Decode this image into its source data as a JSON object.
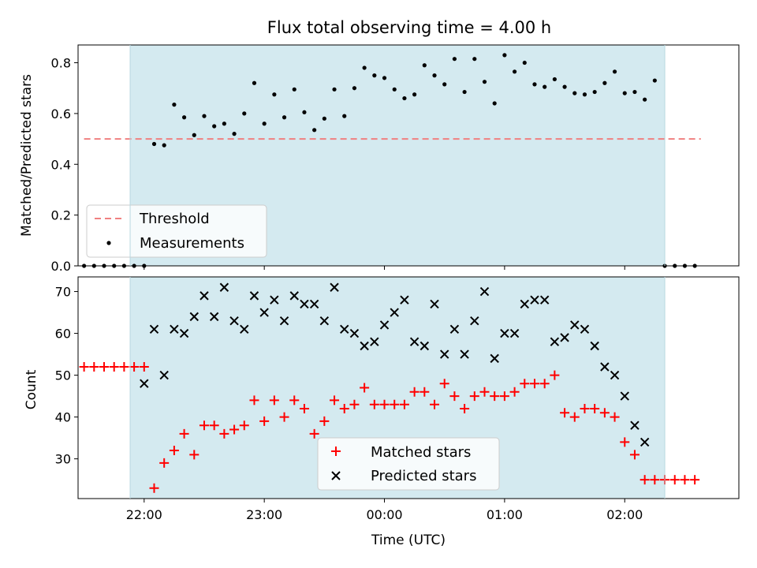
{
  "chart_data": [
    {
      "type": "scatter",
      "title": "Flux total observing time = 4.00 h",
      "ylabel": "Matched/Predicted stars",
      "ylim": [
        0,
        0.87
      ],
      "yticks": [
        "0.0",
        "0.2",
        "0.4",
        "0.6",
        "0.8"
      ],
      "xlim": [
        "21:27",
        "02:57"
      ],
      "x_ticks_shown": false,
      "observing_window": {
        "start": "21:53",
        "end": "02:20",
        "color": "#d4eaf0"
      },
      "threshold": {
        "name": "Threshold",
        "value": 0.5,
        "x_start": "21:30",
        "x_end": "02:38",
        "color": "#f08080",
        "style": "dashed"
      },
      "legend": {
        "position": "lower-left",
        "entries": [
          "Threshold",
          "Measurements"
        ]
      },
      "series": [
        {
          "name": "Measurements",
          "marker": "dot",
          "color": "#000000",
          "points": [
            [
              "21:30",
              0.0
            ],
            [
              "21:35",
              0.0
            ],
            [
              "21:40",
              0.0
            ],
            [
              "21:45",
              0.0
            ],
            [
              "21:50",
              0.0
            ],
            [
              "21:55",
              0.0
            ],
            [
              "22:00",
              0.0
            ],
            [
              "22:05",
              0.48
            ],
            [
              "22:10",
              0.475
            ],
            [
              "22:15",
              0.635
            ],
            [
              "22:20",
              0.585
            ],
            [
              "22:25",
              0.515
            ],
            [
              "22:30",
              0.59
            ],
            [
              "22:35",
              0.55
            ],
            [
              "22:40",
              0.56
            ],
            [
              "22:45",
              0.52
            ],
            [
              "22:50",
              0.6
            ],
            [
              "22:55",
              0.72
            ],
            [
              "23:00",
              0.56
            ],
            [
              "23:05",
              0.675
            ],
            [
              "23:10",
              0.585
            ],
            [
              "23:15",
              0.695
            ],
            [
              "23:20",
              0.605
            ],
            [
              "23:25",
              0.535
            ],
            [
              "23:30",
              0.58
            ],
            [
              "23:35",
              0.695
            ],
            [
              "23:40",
              0.59
            ],
            [
              "23:45",
              0.7
            ],
            [
              "23:50",
              0.78
            ],
            [
              "23:55",
              0.75
            ],
            [
              "00:00",
              0.74
            ],
            [
              "00:05",
              0.695
            ],
            [
              "00:10",
              0.66
            ],
            [
              "00:15",
              0.675
            ],
            [
              "00:20",
              0.79
            ],
            [
              "00:25",
              0.75
            ],
            [
              "00:30",
              0.715
            ],
            [
              "00:35",
              0.815
            ],
            [
              "00:40",
              0.685
            ],
            [
              "00:45",
              0.815
            ],
            [
              "00:50",
              0.725
            ],
            [
              "00:55",
              0.64
            ],
            [
              "01:00",
              0.83
            ],
            [
              "01:05",
              0.765
            ],
            [
              "01:10",
              0.8
            ],
            [
              "01:15",
              0.715
            ],
            [
              "01:20",
              0.705
            ],
            [
              "01:25",
              0.735
            ],
            [
              "01:30",
              0.705
            ],
            [
              "01:35",
              0.68
            ],
            [
              "01:40",
              0.675
            ],
            [
              "01:45",
              0.685
            ],
            [
              "01:50",
              0.72
            ],
            [
              "01:55",
              0.765
            ],
            [
              "02:00",
              0.68
            ],
            [
              "02:05",
              0.685
            ],
            [
              "02:10",
              0.655
            ],
            [
              "02:15",
              0.73
            ],
            [
              "02:20",
              0.0
            ],
            [
              "02:25",
              0.0
            ],
            [
              "02:30",
              0.0
            ],
            [
              "02:35",
              0.0
            ]
          ]
        }
      ]
    },
    {
      "type": "scatter",
      "ylabel": "Count",
      "xlabel": "Time (UTC)",
      "ylim": [
        20.5,
        73.5
      ],
      "yticks": [
        "30",
        "40",
        "50",
        "60",
        "70"
      ],
      "xlim": [
        "21:27",
        "02:57"
      ],
      "xticks": [
        "22:00",
        "23:00",
        "00:00",
        "01:00",
        "02:00"
      ],
      "observing_window": {
        "start": "21:53",
        "end": "02:20",
        "color": "#d4eaf0"
      },
      "legend": {
        "position": "lower-center",
        "entries": [
          "Matched stars",
          "Predicted stars"
        ]
      },
      "series": [
        {
          "name": "Matched stars",
          "marker": "plus",
          "color": "#ff0000",
          "points": [
            [
              "21:30",
              52
            ],
            [
              "21:35",
              52
            ],
            [
              "21:40",
              52
            ],
            [
              "21:45",
              52
            ],
            [
              "21:50",
              52
            ],
            [
              "21:55",
              52
            ],
            [
              "22:00",
              52
            ],
            [
              "22:05",
              23
            ],
            [
              "22:10",
              29
            ],
            [
              "22:15",
              32
            ],
            [
              "22:20",
              36
            ],
            [
              "22:25",
              31
            ],
            [
              "22:30",
              38
            ],
            [
              "22:35",
              38
            ],
            [
              "22:40",
              36
            ],
            [
              "22:45",
              37
            ],
            [
              "22:50",
              38
            ],
            [
              "22:55",
              44
            ],
            [
              "23:00",
              39
            ],
            [
              "23:05",
              44
            ],
            [
              "23:10",
              40
            ],
            [
              "23:15",
              44
            ],
            [
              "23:20",
              42
            ],
            [
              "23:25",
              36
            ],
            [
              "23:30",
              39
            ],
            [
              "23:35",
              44
            ],
            [
              "23:40",
              42
            ],
            [
              "23:45",
              43
            ],
            [
              "23:50",
              47
            ],
            [
              "23:55",
              43
            ],
            [
              "00:00",
              43
            ],
            [
              "00:05",
              43
            ],
            [
              "00:10",
              43
            ],
            [
              "00:15",
              46
            ],
            [
              "00:20",
              46
            ],
            [
              "00:25",
              43
            ],
            [
              "00:30",
              48
            ],
            [
              "00:35",
              45
            ],
            [
              "00:40",
              42
            ],
            [
              "00:45",
              45
            ],
            [
              "00:50",
              46
            ],
            [
              "00:55",
              45
            ],
            [
              "01:00",
              45
            ],
            [
              "01:05",
              46
            ],
            [
              "01:10",
              48
            ],
            [
              "01:15",
              48
            ],
            [
              "01:20",
              48
            ],
            [
              "01:25",
              50
            ],
            [
              "01:30",
              41
            ],
            [
              "01:35",
              40
            ],
            [
              "01:40",
              42
            ],
            [
              "01:45",
              42
            ],
            [
              "01:50",
              41
            ],
            [
              "01:55",
              40
            ],
            [
              "02:00",
              34
            ],
            [
              "02:05",
              31
            ],
            [
              "02:10",
              25
            ],
            [
              "02:15",
              25
            ],
            [
              "02:20",
              25
            ],
            [
              "02:25",
              25
            ],
            [
              "02:30",
              25
            ],
            [
              "02:35",
              25
            ]
          ]
        },
        {
          "name": "Predicted stars",
          "marker": "x",
          "color": "#000000",
          "points": [
            [
              "22:00",
              48
            ],
            [
              "22:05",
              61
            ],
            [
              "22:10",
              50
            ],
            [
              "22:15",
              61
            ],
            [
              "22:20",
              60
            ],
            [
              "22:25",
              64
            ],
            [
              "22:30",
              69
            ],
            [
              "22:35",
              64
            ],
            [
              "22:40",
              71
            ],
            [
              "22:45",
              63
            ],
            [
              "22:50",
              61
            ],
            [
              "22:55",
              69
            ],
            [
              "23:00",
              65
            ],
            [
              "23:05",
              68
            ],
            [
              "23:10",
              63
            ],
            [
              "23:15",
              69
            ],
            [
              "23:20",
              67
            ],
            [
              "23:25",
              67
            ],
            [
              "23:30",
              63
            ],
            [
              "23:35",
              71
            ],
            [
              "23:40",
              61
            ],
            [
              "23:45",
              60
            ],
            [
              "23:50",
              57
            ],
            [
              "23:55",
              58
            ],
            [
              "00:00",
              62
            ],
            [
              "00:05",
              65
            ],
            [
              "00:10",
              68
            ],
            [
              "00:15",
              58
            ],
            [
              "00:20",
              57
            ],
            [
              "00:25",
              67
            ],
            [
              "00:30",
              55
            ],
            [
              "00:35",
              61
            ],
            [
              "00:40",
              55
            ],
            [
              "00:45",
              63
            ],
            [
              "00:50",
              70
            ],
            [
              "00:55",
              54
            ],
            [
              "01:00",
              60
            ],
            [
              "01:05",
              60
            ],
            [
              "01:10",
              67
            ],
            [
              "01:15",
              68
            ],
            [
              "01:20",
              68
            ],
            [
              "01:25",
              58
            ],
            [
              "01:30",
              59
            ],
            [
              "01:35",
              62
            ],
            [
              "01:40",
              61
            ],
            [
              "01:45",
              57
            ],
            [
              "01:50",
              52
            ],
            [
              "01:55",
              50
            ],
            [
              "02:00",
              45
            ],
            [
              "02:05",
              38
            ],
            [
              "02:10",
              34
            ]
          ]
        }
      ]
    }
  ]
}
